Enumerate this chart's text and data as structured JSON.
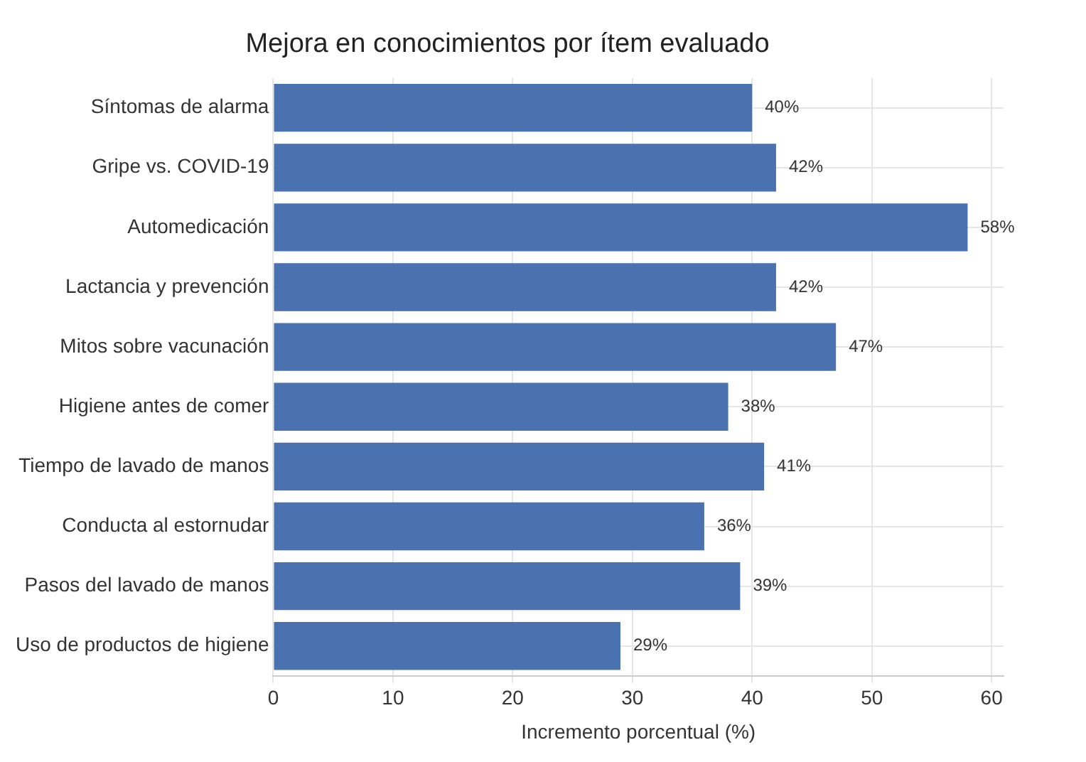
{
  "chart_data": {
    "type": "bar",
    "orientation": "horizontal",
    "title": "Mejora en conocimientos por ítem evaluado",
    "xlabel": "Incremento porcentual (%)",
    "categories": [
      "Síntomas de alarma",
      "Gripe vs. COVID-19",
      "Automedicación",
      "Lactancia y prevención",
      "Mitos sobre vacunación",
      "Higiene antes de comer",
      "Tiempo de lavado de manos",
      "Conducta al estornudar",
      "Pasos del lavado de manos",
      "Uso de productos de higiene"
    ],
    "values": [
      40,
      42,
      58,
      42,
      47,
      38,
      41,
      36,
      39,
      29
    ],
    "value_labels": [
      "40%",
      "42%",
      "58%",
      "42%",
      "47%",
      "38%",
      "41%",
      "36%",
      "39%",
      "29%"
    ],
    "color": "#4a72b0",
    "xlim": [
      0,
      61
    ],
    "xticks": [
      0,
      10,
      20,
      30,
      40,
      50,
      60
    ],
    "grid": true
  }
}
